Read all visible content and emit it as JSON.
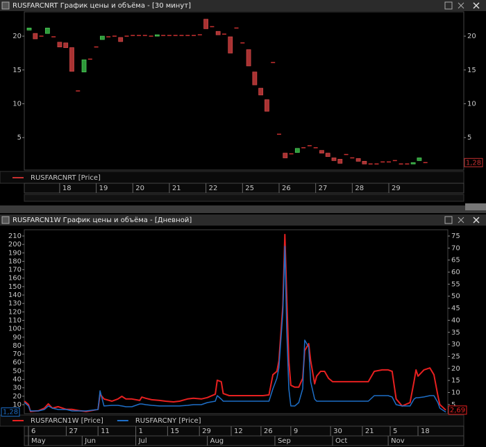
{
  "chart_data": [
    {
      "type": "candlestick",
      "title": "RUSFARCNRT График цены и объёма - [30 минут]",
      "series": [
        {
          "name": "RUSFARCNRT [Price]",
          "color": "#c83030",
          "last_label": "1,28",
          "open": [
            20.9,
            20.4,
            20.0,
            20.4,
            19.9,
            19.1,
            19.0,
            18.3,
            11.9,
            14.7,
            16.6,
            18.4,
            19.5,
            19.9,
            20.0,
            19.8,
            20.0,
            20.1,
            20.1,
            20.1,
            20.0,
            20.0,
            20.1,
            20.1,
            20.1,
            20.1,
            20.1,
            20.1,
            20.2,
            22.5,
            21.4,
            20.7,
            20.3,
            19.9,
            21.2,
            19.0,
            18.0,
            14.7,
            12.3,
            10.6,
            16.1,
            5.5,
            2.7,
            2.6,
            2.8,
            3.5,
            3.8,
            3.5,
            3.1,
            2.7,
            2.0,
            1.8,
            2.5,
            2.0,
            1.9,
            1.5,
            1.1,
            1.1,
            1.4,
            1.4,
            1.6,
            1.1,
            1.1,
            1.1,
            1.6,
            1.3
          ],
          "close": [
            21.2,
            19.6,
            20.0,
            21.2,
            19.9,
            18.4,
            18.3,
            14.8,
            11.9,
            16.5,
            16.6,
            18.4,
            20.0,
            19.9,
            20.0,
            19.2,
            20.0,
            20.1,
            20.1,
            20.1,
            20.0,
            20.2,
            20.1,
            20.1,
            20.1,
            20.1,
            20.1,
            20.1,
            20.2,
            21.1,
            21.4,
            20.2,
            20.3,
            17.5,
            21.2,
            19.0,
            15.6,
            12.8,
            11.3,
            8.9,
            16.1,
            5.5,
            2.0,
            2.6,
            3.4,
            3.5,
            3.8,
            3.5,
            2.7,
            2.2,
            1.6,
            1.2,
            2.5,
            2.0,
            1.5,
            1.1,
            1.1,
            1.1,
            1.4,
            1.4,
            1.6,
            1.1,
            1.1,
            1.3,
            2.0,
            1.3
          ]
        }
      ],
      "up_color": "#2e9a3a",
      "down_color": "#a83232",
      "xlim": [
        -0.8,
        71.3
      ],
      "xticks": [
        {
          "value": 5,
          "label": "18"
        },
        {
          "value": 11,
          "label": "19"
        },
        {
          "value": 17,
          "label": "20"
        },
        {
          "value": 23,
          "label": "21"
        },
        {
          "value": 29,
          "label": "22"
        },
        {
          "value": 35,
          "label": "25"
        },
        {
          "value": 41,
          "label": "26"
        },
        {
          "value": 47,
          "label": "27"
        },
        {
          "value": 53,
          "label": "28"
        },
        {
          "value": 59,
          "label": "29"
        }
      ],
      "ylim": [
        0.2,
        23.6
      ],
      "yticks": [
        5,
        10,
        15,
        20
      ]
    },
    {
      "type": "line",
      "title": "RUSFARCN1W График цены и объёма - [Дневной]",
      "x": [
        -3,
        -1,
        0,
        4,
        7,
        9,
        11,
        14,
        18,
        21,
        25,
        28,
        34,
        35,
        37,
        41,
        44,
        46,
        48,
        51,
        55,
        56,
        58,
        61,
        65,
        68,
        72,
        75,
        79,
        82,
        86,
        89,
        93,
        94,
        96,
        97,
        100,
        103,
        107,
        110,
        114,
        117,
        120,
        122,
        124,
        125,
        127,
        128,
        129,
        130,
        131,
        133,
        135,
        137,
        138,
        140,
        141,
        143,
        144,
        146,
        148,
        150,
        152,
        156,
        159,
        163,
        166,
        170,
        173,
        177,
        180,
        182,
        184,
        187,
        191,
        193,
        194,
        195,
        198,
        201,
        203,
        205,
        206,
        209
      ],
      "series": [
        {
          "name": "RUSFARCN1W [Price]",
          "color": "#e82020",
          "axis": "y2",
          "last_label": "2,69",
          "values": [
            6.4,
            5.0,
            2.1,
            2.4,
            3.5,
            5.3,
            3.5,
            4.1,
            3.0,
            3.0,
            2.4,
            2.1,
            3.0,
            9.3,
            7.3,
            6.4,
            7.3,
            8.4,
            7.3,
            7.3,
            6.7,
            8.1,
            7.6,
            7.0,
            6.7,
            6.4,
            6.1,
            6.4,
            7.3,
            7.6,
            7.3,
            7.9,
            9.3,
            15.1,
            14.5,
            9.6,
            8.7,
            8.7,
            8.7,
            8.7,
            8.7,
            8.7,
            9.0,
            17.4,
            18.8,
            23.1,
            46.2,
            75.6,
            49.1,
            23.1,
            13.0,
            12.2,
            12.2,
            15.9,
            27.4,
            30.3,
            23.1,
            13.6,
            16.8,
            18.8,
            18.8,
            15.9,
            14.5,
            14.5,
            14.5,
            14.5,
            14.5,
            14.5,
            18.8,
            19.4,
            19.4,
            18.8,
            7.3,
            4.4,
            5.8,
            14.5,
            19.4,
            16.8,
            19.4,
            20.2,
            17.4,
            8.7,
            5.0,
            2.69
          ]
        },
        {
          "name": "RUSFARCNY [Price]",
          "color": "#1e6fc8",
          "axis": "y",
          "last_label": "1,28",
          "values": [
            12.5,
            8.4,
            2.6,
            2.6,
            4.2,
            8.4,
            5.9,
            4.2,
            4.2,
            2.6,
            2.6,
            2.6,
            4.2,
            26.5,
            8.4,
            9.2,
            9.2,
            8.4,
            7.5,
            7.5,
            10.8,
            10.8,
            10.0,
            9.2,
            8.4,
            8.4,
            8.4,
            8.4,
            9.2,
            10.0,
            10.0,
            12.5,
            14.1,
            20.7,
            16.6,
            14.1,
            14.1,
            14.1,
            14.1,
            14.1,
            14.1,
            14.1,
            14.1,
            28.9,
            41.3,
            53.6,
            119.5,
            197.7,
            94.8,
            28.9,
            8.4,
            8.4,
            12.5,
            28.9,
            86.5,
            78.3,
            37.2,
            16.6,
            14.1,
            14.1,
            14.1,
            14.1,
            14.1,
            14.1,
            14.1,
            14.1,
            14.1,
            14.1,
            20.7,
            20.7,
            20.7,
            19.1,
            10.0,
            8.4,
            8.4,
            16.6,
            18.2,
            18.2,
            19.1,
            20.7,
            20.7,
            12.5,
            5.9,
            1.28
          ]
        }
      ],
      "xlim": [
        -3.1,
        210
      ],
      "xticks": [
        {
          "value": -1,
          "label": "6"
        },
        {
          "value": 18,
          "label": "27"
        },
        {
          "value": 34,
          "label": "11"
        },
        {
          "value": 53,
          "label": "1"
        },
        {
          "value": 69,
          "label": "15"
        },
        {
          "value": 85,
          "label": "29"
        },
        {
          "value": 101,
          "label": "12"
        },
        {
          "value": 116,
          "label": "26"
        },
        {
          "value": 131,
          "label": "9"
        },
        {
          "value": 151,
          "label": "30"
        },
        {
          "value": 167,
          "label": "21"
        },
        {
          "value": 181,
          "label": "5"
        },
        {
          "value": 195,
          "label": "18"
        }
      ],
      "xticks_major": [
        {
          "value": -1,
          "label": "May"
        },
        {
          "value": 26,
          "label": "Jun"
        },
        {
          "value": 53,
          "label": "Jul"
        },
        {
          "value": 89,
          "label": "Aug"
        },
        {
          "value": 123,
          "label": "Sep"
        },
        {
          "value": 152,
          "label": "Oct"
        },
        {
          "value": 180,
          "label": "Nov"
        }
      ],
      "ylim": [
        -0.7,
        217.4
      ],
      "yticks": [
        10,
        20,
        30,
        40,
        50,
        60,
        70,
        80,
        90,
        100,
        110,
        120,
        130,
        140,
        150,
        160,
        170,
        180,
        190,
        200,
        210
      ],
      "y2lim": [
        1.2,
        77.6
      ],
      "y2ticks": [
        5,
        10,
        15,
        20,
        25,
        30,
        35,
        40,
        45,
        50,
        55,
        60,
        65,
        70,
        75
      ]
    }
  ]
}
